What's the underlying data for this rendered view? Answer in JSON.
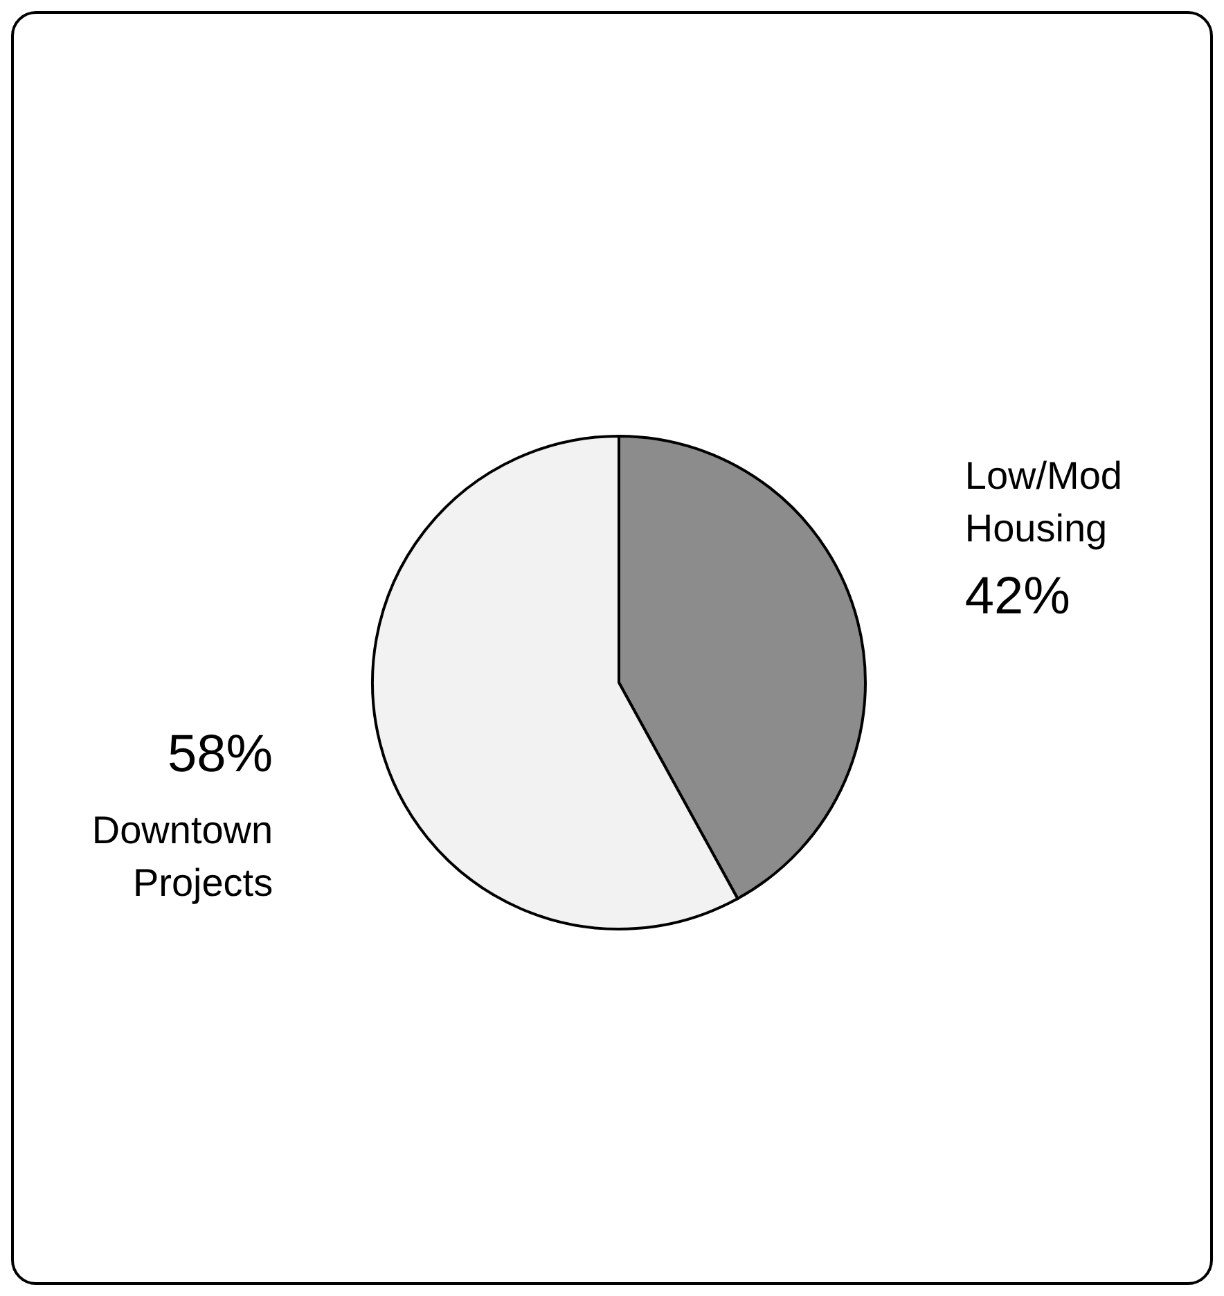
{
  "chart_data": {
    "type": "pie",
    "categories": [
      "Low/Mod Housing",
      "Downtown Projects"
    ],
    "values": [
      42,
      58
    ],
    "colors": [
      "#8c8c8c",
      "#f2f2f2"
    ],
    "value_labels": [
      "42%",
      "58%"
    ],
    "legend": false
  }
}
